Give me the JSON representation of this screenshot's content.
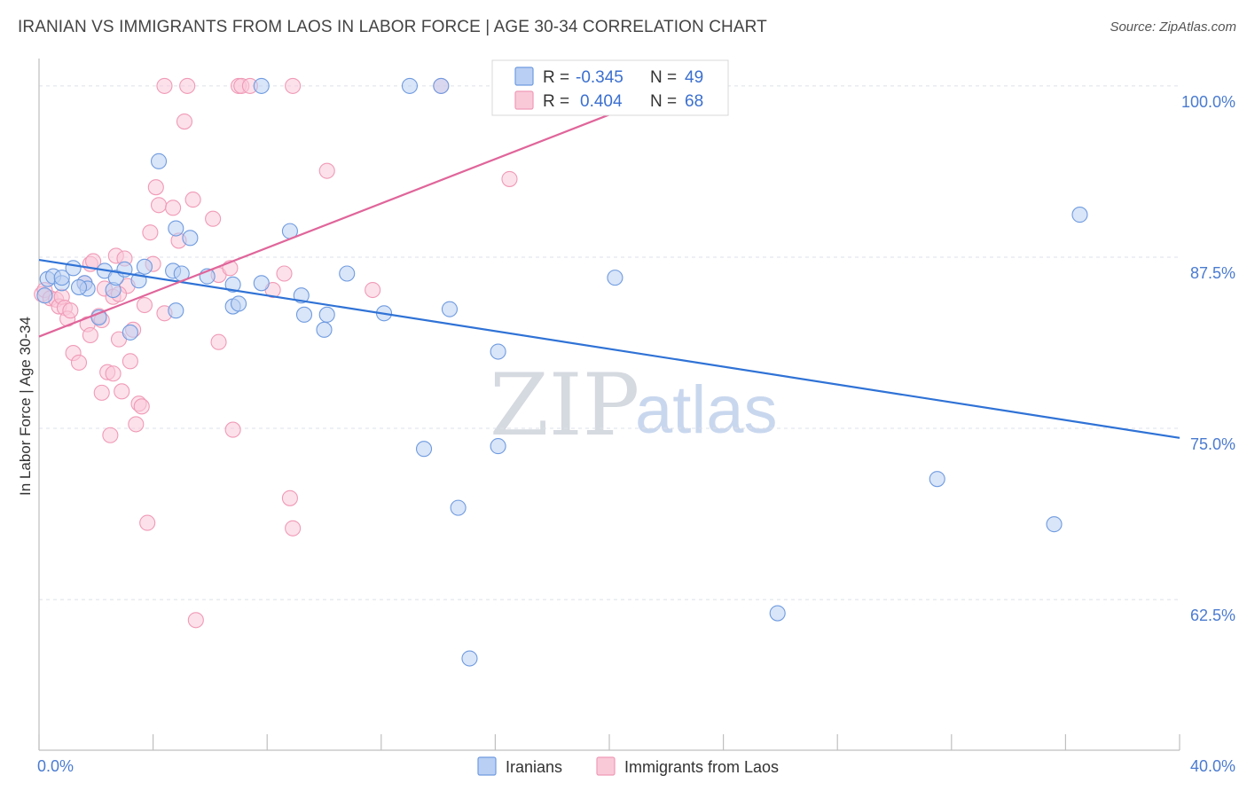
{
  "title": "IRANIAN VS IMMIGRANTS FROM LAOS IN LABOR FORCE | AGE 30-34 CORRELATION CHART",
  "source": "Source: ZipAtlas.com",
  "watermark": {
    "zip": "ZIP",
    "atlas": "atlas"
  },
  "colors": {
    "blue": "#6f9be0",
    "blue_line": "#2f72d6",
    "pink": "#f09ab6",
    "pink_line": "#e0659a",
    "blue_fill": "#b9cff3",
    "pink_fill": "#f9c9d8"
  },
  "legend_box": {
    "rows": [
      {
        "r_label": "R =",
        "r_value": "-0.345",
        "n_label": "N =",
        "n_value": "49"
      },
      {
        "r_label": "R =",
        "r_value": "0.404",
        "n_label": "N =",
        "n_value": "68"
      }
    ]
  },
  "bottom_legend": [
    "Iranians",
    "Immigrants from Laos"
  ],
  "chart_data": {
    "type": "scatter",
    "ylabel": "In Labor Force | Age 30-34",
    "xlim": [
      0,
      40
    ],
    "ylim": [
      51.5,
      102
    ],
    "x_tick_labels": [
      "0.0%",
      "40.0%"
    ],
    "y_ticks": [
      {
        "value": 100,
        "label": "100.0%"
      },
      {
        "value": 87.5,
        "label": "87.5%"
      },
      {
        "value": 75,
        "label": "75.0%"
      },
      {
        "value": 62.5,
        "label": "62.5%"
      }
    ],
    "grid": true,
    "series": [
      {
        "name": "Iranians",
        "r": -0.345,
        "n": 49,
        "trend": [
          [
            0,
            87.3
          ],
          [
            40,
            74.3
          ]
        ],
        "points": [
          [
            0.2,
            84.7
          ],
          [
            0.3,
            85.9
          ],
          [
            0.5,
            86.1
          ],
          [
            0.8,
            85.6
          ],
          [
            0.8,
            86.0
          ],
          [
            1.2,
            86.7
          ],
          [
            1.6,
            85.6
          ],
          [
            1.7,
            85.2
          ],
          [
            2.3,
            86.5
          ],
          [
            2.6,
            85.1
          ],
          [
            2.7,
            86.0
          ],
          [
            3.0,
            86.6
          ],
          [
            3.2,
            82.0
          ],
          [
            3.7,
            86.8
          ],
          [
            4.7,
            86.5
          ],
          [
            4.8,
            83.6
          ],
          [
            5.0,
            86.3
          ],
          [
            5.3,
            88.9
          ],
          [
            6.8,
            85.5
          ],
          [
            6.8,
            83.9
          ],
          [
            7.0,
            84.1
          ],
          [
            7.8,
            85.6
          ],
          [
            7.8,
            100.0
          ],
          [
            8.8,
            89.4
          ],
          [
            9.2,
            84.7
          ],
          [
            9.3,
            83.3
          ],
          [
            10.0,
            82.2
          ],
          [
            10.1,
            83.3
          ],
          [
            10.8,
            86.3
          ],
          [
            12.1,
            83.4
          ],
          [
            13.0,
            100.0
          ],
          [
            13.5,
            73.5
          ],
          [
            14.1,
            100.0
          ],
          [
            14.4,
            83.7
          ],
          [
            14.7,
            69.2
          ],
          [
            15.1,
            58.2
          ],
          [
            16.1,
            73.7
          ],
          [
            16.1,
            80.6
          ],
          [
            20.2,
            86.0
          ],
          [
            25.9,
            61.5
          ],
          [
            31.5,
            71.3
          ],
          [
            35.6,
            68.0
          ],
          [
            36.5,
            90.6
          ],
          [
            4.2,
            94.5
          ],
          [
            4.8,
            89.6
          ],
          [
            2.1,
            83.1
          ],
          [
            1.4,
            85.3
          ],
          [
            3.5,
            85.8
          ],
          [
            5.9,
            86.1
          ]
        ]
      },
      {
        "name": "Immigrants from Laos",
        "r": 0.404,
        "n": 68,
        "trend": [
          [
            0,
            81.7
          ],
          [
            20.0,
            97.9
          ]
        ],
        "points": [
          [
            0.1,
            84.8
          ],
          [
            0.2,
            85.1
          ],
          [
            0.4,
            84.5
          ],
          [
            0.6,
            84.4
          ],
          [
            0.7,
            83.9
          ],
          [
            0.8,
            84.6
          ],
          [
            0.9,
            83.8
          ],
          [
            1.0,
            83.0
          ],
          [
            1.1,
            83.6
          ],
          [
            1.2,
            80.5
          ],
          [
            1.4,
            79.8
          ],
          [
            1.6,
            85.6
          ],
          [
            1.7,
            82.6
          ],
          [
            1.8,
            81.8
          ],
          [
            1.8,
            87.0
          ],
          [
            1.9,
            87.2
          ],
          [
            2.1,
            83.2
          ],
          [
            2.2,
            82.9
          ],
          [
            2.2,
            77.6
          ],
          [
            2.3,
            85.2
          ],
          [
            2.4,
            79.1
          ],
          [
            2.5,
            74.5
          ],
          [
            2.6,
            84.6
          ],
          [
            2.6,
            79.0
          ],
          [
            2.7,
            87.6
          ],
          [
            2.8,
            81.5
          ],
          [
            2.9,
            77.7
          ],
          [
            3.0,
            87.4
          ],
          [
            3.1,
            85.4
          ],
          [
            3.2,
            79.9
          ],
          [
            3.3,
            82.2
          ],
          [
            3.4,
            75.3
          ],
          [
            3.5,
            76.8
          ],
          [
            3.6,
            76.6
          ],
          [
            3.7,
            84.0
          ],
          [
            3.8,
            68.1
          ],
          [
            3.9,
            89.3
          ],
          [
            4.0,
            87.0
          ],
          [
            4.1,
            92.6
          ],
          [
            4.2,
            91.3
          ],
          [
            4.4,
            83.4
          ],
          [
            4.7,
            91.1
          ],
          [
            4.9,
            88.7
          ],
          [
            5.1,
            97.4
          ],
          [
            5.2,
            100.0
          ],
          [
            5.4,
            91.7
          ],
          [
            5.5,
            61.0
          ],
          [
            6.1,
            90.3
          ],
          [
            6.3,
            86.2
          ],
          [
            6.3,
            81.3
          ],
          [
            6.8,
            74.9
          ],
          [
            7.0,
            100.0
          ],
          [
            7.1,
            100.0
          ],
          [
            7.4,
            100.0
          ],
          [
            8.2,
            85.1
          ],
          [
            8.6,
            86.3
          ],
          [
            8.8,
            69.9
          ],
          [
            8.9,
            67.7
          ],
          [
            8.9,
            100.0
          ],
          [
            10.1,
            93.8
          ],
          [
            11.7,
            85.1
          ],
          [
            14.1,
            100.0
          ],
          [
            16.5,
            93.2
          ],
          [
            16.8,
            100.0
          ],
          [
            20.0,
            100.0
          ],
          [
            4.4,
            100.0
          ],
          [
            6.7,
            86.7
          ],
          [
            2.8,
            84.8
          ]
        ]
      }
    ]
  }
}
